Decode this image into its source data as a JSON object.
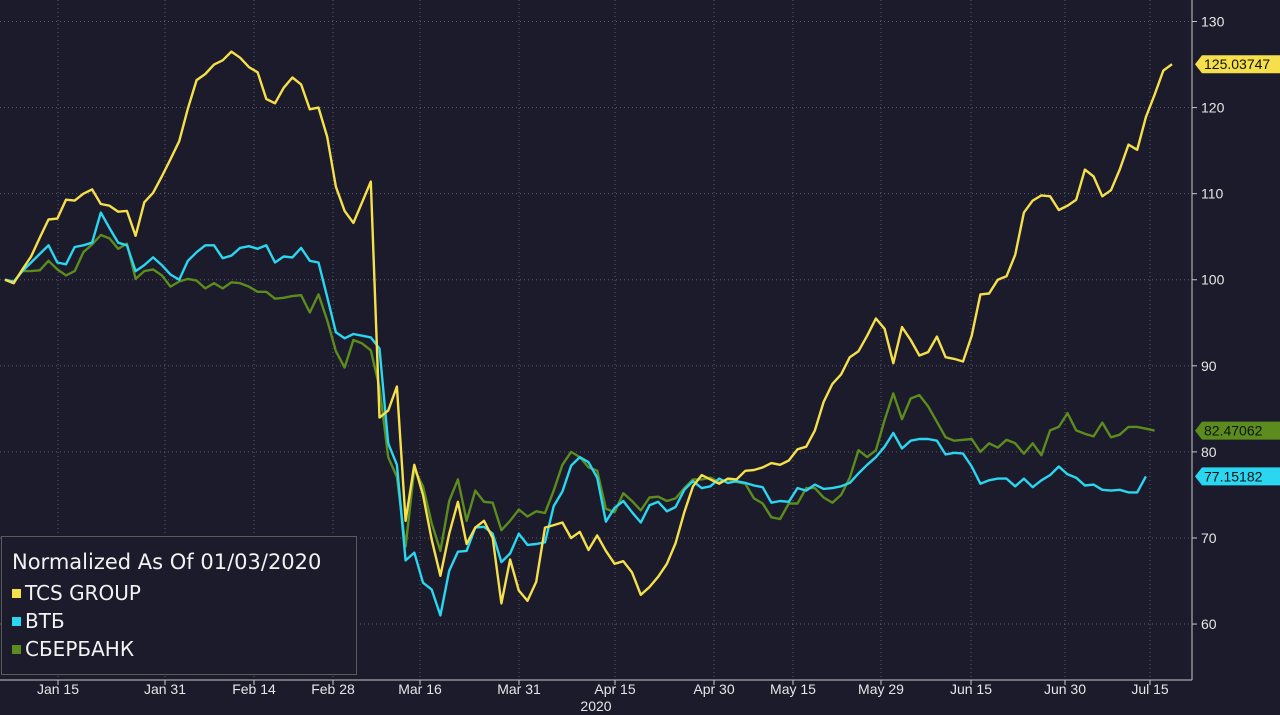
{
  "chart_data": {
    "type": "line",
    "title": "Normalized As Of 01/03/2020",
    "xlabel": "2020",
    "ylabel": "",
    "ylim": [
      53.5,
      132.5
    ],
    "yticks": [
      60,
      70,
      80,
      90,
      100,
      110,
      120,
      130
    ],
    "xticks": [
      "Jan 15",
      "Jan 31",
      "Feb 14",
      "Feb 28",
      "Mar 16",
      "Mar 31",
      "Apr 15",
      "Apr 30",
      "May 15",
      "May 29",
      "Jun 15",
      "Jun 30",
      "Jul 15"
    ],
    "x_axis_label": "2020",
    "grid": true,
    "legend_position": "bottom-left",
    "series": [
      {
        "name": "TCS GROUP",
        "color": "#f5e04b",
        "last_value_label": "125.03747",
        "last_value": 125.03747,
        "values": [
          100,
          99.6,
          101.2,
          102.7,
          104.9,
          107.0,
          107.1,
          109.3,
          109.2,
          110.0,
          110.5,
          108.8,
          108.6,
          107.9,
          108.0,
          105.1,
          109.0,
          110.1,
          112.0,
          114.0,
          116.1,
          119.9,
          123.2,
          123.9,
          125.0,
          125.5,
          126.5,
          125.8,
          124.7,
          124.1,
          121.0,
          120.5,
          122.3,
          123.5,
          122.7,
          119.8,
          120.0,
          116.6,
          110.8,
          108.0,
          106.6,
          109.0,
          111.4,
          84.0,
          84.8,
          87.6,
          72.0,
          78.5,
          75.0,
          69.8,
          65.6,
          70.5,
          74.2,
          69.3,
          71.2,
          72.0,
          70.0,
          62.4,
          67.5,
          63.9,
          62.7,
          64.9,
          71.2,
          71.5,
          71.8,
          70.0,
          70.7,
          68.6,
          70.3,
          68.5,
          67.0,
          67.3,
          66.0,
          63.4,
          64.3,
          65.5,
          67.0,
          69.4,
          73.0,
          76.0,
          77.3,
          76.8,
          76.3,
          76.9,
          76.8,
          77.8,
          77.9,
          78.2,
          78.7,
          78.5,
          79.0,
          80.3,
          80.6,
          82.5,
          85.8,
          87.9,
          89.0,
          91.0,
          91.7,
          93.5,
          95.5,
          94.3,
          90.3,
          94.5,
          93.0,
          91.2,
          91.6,
          93.4,
          91.0,
          90.8,
          90.5,
          93.5,
          98.3,
          98.4,
          100.0,
          100.4,
          102.9,
          107.8,
          109.2,
          109.8,
          109.7,
          108.1,
          108.6,
          109.3,
          112.8,
          112.0,
          109.7,
          110.4,
          112.8,
          115.7,
          115.1,
          118.9,
          121.5,
          124.3,
          125.03747
        ]
      },
      {
        "name": "ВТБ",
        "color": "#2ad6f0",
        "last_value_label": "77.15182",
        "last_value": 77.15182,
        "values": [
          100,
          99.8,
          101.0,
          102.0,
          103.0,
          104.0,
          102.0,
          101.8,
          103.8,
          104.0,
          104.3,
          107.8,
          106.0,
          104.3,
          104.0,
          101.0,
          101.7,
          102.6,
          101.7,
          100.6,
          100.0,
          102.2,
          103.2,
          104.0,
          104.0,
          102.5,
          102.8,
          103.7,
          103.9,
          103.6,
          104.0,
          102.0,
          102.7,
          102.6,
          103.7,
          102.2,
          102.0,
          98.0,
          93.9,
          93.2,
          93.7,
          93.5,
          93.3,
          92.0,
          81.0,
          78.5,
          67.4,
          68.3,
          64.8,
          64.0,
          61.0,
          66.2,
          68.4,
          68.5,
          71.2,
          71.3,
          70.5,
          67.2,
          68.2,
          70.5,
          69.2,
          69.3,
          69.5,
          73.7,
          75.4,
          78.4,
          79.4,
          78.8,
          77.0,
          71.9,
          73.5,
          74.3,
          73.0,
          71.8,
          73.8,
          74.2,
          73.1,
          73.6,
          75.6,
          76.6,
          75.8,
          76.0,
          76.9,
          76.4,
          76.6,
          76.4,
          76.1,
          75.9,
          74.1,
          74.3,
          74.2,
          75.8,
          75.5,
          76.2,
          75.7,
          75.8,
          76.0,
          76.4,
          77.5,
          78.5,
          79.4,
          80.6,
          82.2,
          80.4,
          81.3,
          81.5,
          81.5,
          81.3,
          79.7,
          79.9,
          79.8,
          78.3,
          76.3,
          76.7,
          76.9,
          76.9,
          76.0,
          76.9,
          75.9,
          76.7,
          77.3,
          78.3,
          77.4,
          77.0,
          76.1,
          76.2,
          75.6,
          75.5,
          75.6,
          75.3,
          75.3,
          77.15182
        ]
      },
      {
        "name": "СБЕРБАНК",
        "color": "#5b8c1d",
        "last_value_label": "82.47062",
        "last_value": 82.47062,
        "values": [
          100,
          99.7,
          101.0,
          101.0,
          101.1,
          102.2,
          101.2,
          100.5,
          101.0,
          103.2,
          104.1,
          105.2,
          104.8,
          103.6,
          104.2,
          100.1,
          101.0,
          101.2,
          100.5,
          99.2,
          99.8,
          100.1,
          99.9,
          99.0,
          99.6,
          99.0,
          99.7,
          99.6,
          99.2,
          98.6,
          98.6,
          97.8,
          97.9,
          98.1,
          98.2,
          96.2,
          98.3,
          95.3,
          91.7,
          89.8,
          93.0,
          92.6,
          91.8,
          87.5,
          79.4,
          77.1,
          69.0,
          78.0,
          76.0,
          71.7,
          68.5,
          74.3,
          76.8,
          72.0,
          75.5,
          74.2,
          74.1,
          70.9,
          72.0,
          73.3,
          72.5,
          73.1,
          72.9,
          75.5,
          78.5,
          80.0,
          79.4,
          78.2,
          77.8,
          73.4,
          73.0,
          75.2,
          74.3,
          73.2,
          74.7,
          74.8,
          74.3,
          74.6,
          75.8,
          76.8,
          76.8,
          77.0,
          76.5,
          76.8,
          76.5,
          76.3,
          74.6,
          74.0,
          72.4,
          72.2,
          74.0,
          74.0,
          75.8,
          75.8,
          74.7,
          74.1,
          75.0,
          77.0,
          80.2,
          79.4,
          80.2,
          83.7,
          86.8,
          83.8,
          86.2,
          86.6,
          85.3,
          83.5,
          81.7,
          81.3,
          81.4,
          81.5,
          80.0,
          81.0,
          80.5,
          81.4,
          81.0,
          79.8,
          81.0,
          79.6,
          82.5,
          82.9,
          84.5,
          82.5,
          82.1,
          81.8,
          83.4,
          81.7,
          82.0,
          82.9,
          82.9,
          82.7,
          82.47062
        ]
      }
    ]
  }
}
